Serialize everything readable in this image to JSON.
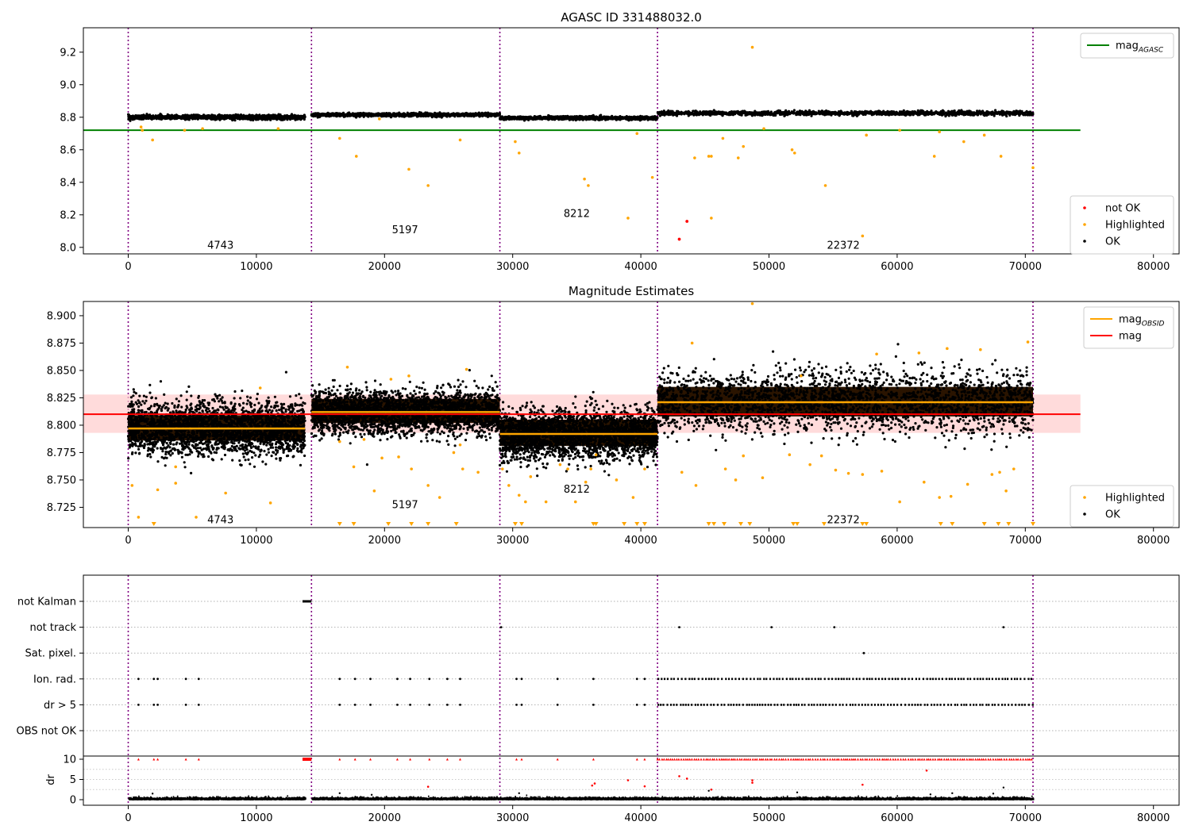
{
  "figure": {
    "x_ticks": [
      0,
      10000,
      20000,
      30000,
      40000,
      50000,
      60000,
      70000,
      80000
    ],
    "x_range": [
      -3500,
      82000
    ],
    "obsid_boundaries": [
      0,
      14300,
      29000,
      41300,
      70600
    ],
    "boundary_color": "#800080",
    "colors": {
      "ok": "#000000",
      "highlighted": "#ffa500",
      "not_ok": "#ff0000",
      "agasc_line": "#008000",
      "mag_line": "#ff0000",
      "obsid_line": "#ffa500",
      "band": "#ffcccc"
    }
  },
  "chart_data": [
    {
      "type": "scatter",
      "title": "AGASC ID 331488032.0",
      "xlabel": "",
      "ylabel": "",
      "xlim": [
        -3500,
        82000
      ],
      "ylim": [
        7.96,
        9.35
      ],
      "y_ticks": [
        "8.0",
        "8.2",
        "8.4",
        "8.6",
        "8.8",
        "9.0",
        "9.2"
      ],
      "legend_top": [
        {
          "label": "mag",
          "sub": "AGASC",
          "color": "#008000"
        }
      ],
      "legend_bottom": [
        {
          "label": "not OK",
          "color": "#ff0000"
        },
        {
          "label": "Highlighted",
          "color": "#ffa500"
        },
        {
          "label": "OK",
          "color": "#000000"
        }
      ],
      "agasc_mag": 8.72,
      "agasc_line_x": [
        -3500,
        74300
      ],
      "segments": [
        {
          "x0": 0,
          "x1": 13800,
          "center": 8.8,
          "spread": 0.02
        },
        {
          "x0": 14300,
          "x1": 29000,
          "center": 8.815,
          "spread": 0.015
        },
        {
          "x0": 29000,
          "x1": 41300,
          "center": 8.795,
          "spread": 0.015
        },
        {
          "x0": 41300,
          "x1": 70600,
          "center": 8.825,
          "spread": 0.02
        }
      ],
      "obsid_labels": [
        {
          "text": "4743",
          "x": 7200,
          "y": 8.015
        },
        {
          "text": "5197",
          "x": 21600,
          "y": 8.11
        },
        {
          "text": "8212",
          "x": 35000,
          "y": 8.21
        },
        {
          "text": "22372",
          "x": 55800,
          "y": 8.015
        }
      ],
      "highlighted_points": [
        [
          1000,
          8.74
        ],
        [
          1100,
          8.72
        ],
        [
          1900,
          8.66
        ],
        [
          4400,
          8.72
        ],
        [
          5800,
          8.73
        ],
        [
          11700,
          8.73
        ],
        [
          16500,
          8.67
        ],
        [
          17800,
          8.56
        ],
        [
          19600,
          8.79
        ],
        [
          21900,
          8.48
        ],
        [
          23400,
          8.38
        ],
        [
          25900,
          8.66
        ],
        [
          30200,
          8.65
        ],
        [
          30500,
          8.58
        ],
        [
          35600,
          8.42
        ],
        [
          35900,
          8.38
        ],
        [
          39000,
          8.18
        ],
        [
          39700,
          8.7
        ],
        [
          40900,
          8.43
        ],
        [
          44200,
          8.55
        ],
        [
          45300,
          8.56
        ],
        [
          45500,
          8.56
        ],
        [
          45500,
          8.18
        ],
        [
          47600,
          8.55
        ],
        [
          48000,
          8.62
        ],
        [
          48700,
          9.23
        ],
        [
          51800,
          8.6
        ],
        [
          52000,
          8.58
        ],
        [
          54400,
          8.38
        ],
        [
          57300,
          8.07
        ],
        [
          57600,
          8.69
        ],
        [
          62900,
          8.56
        ],
        [
          63300,
          8.71
        ],
        [
          65200,
          8.65
        ],
        [
          66800,
          8.69
        ],
        [
          68100,
          8.56
        ],
        [
          70600,
          8.49
        ],
        [
          60200,
          8.72
        ],
        [
          49600,
          8.73
        ],
        [
          46400,
          8.67
        ]
      ],
      "not_ok_points": [
        [
          43000,
          8.05
        ],
        [
          43600,
          8.16
        ]
      ]
    },
    {
      "type": "scatter",
      "title": "Magnitude Estimates",
      "xlabel": "",
      "ylabel": "",
      "xlim": [
        -3500,
        82000
      ],
      "ylim": [
        8.7065,
        8.913
      ],
      "y_ticks": [
        "8.725",
        "8.750",
        "8.775",
        "8.800",
        "8.825",
        "8.850",
        "8.875",
        "8.900"
      ],
      "legend_top": [
        {
          "label": "mag",
          "sub": "OBSID",
          "color": "#ffa500"
        },
        {
          "label": "mag",
          "sub": "",
          "color": "#ff0000"
        }
      ],
      "legend_bottom": [
        {
          "label": "Highlighted",
          "color": "#ffa500"
        },
        {
          "label": "OK",
          "color": "#000000"
        }
      ],
      "mag": 8.81,
      "mag_band": [
        8.793,
        8.828
      ],
      "mag_line_x": [
        -3500,
        74300
      ],
      "segments": [
        {
          "x0": 0,
          "x1": 13800,
          "center": 8.797,
          "spread": 0.012,
          "obsid_mag": 8.797,
          "dense": [
            8.786,
            8.809
          ]
        },
        {
          "x0": 14300,
          "x1": 29000,
          "center": 8.812,
          "spread": 0.01,
          "obsid_mag": 8.812,
          "dense": [
            8.802,
            8.824
          ]
        },
        {
          "x0": 29000,
          "x1": 41300,
          "center": 8.791,
          "spread": 0.011,
          "obsid_mag": 8.792,
          "dense": [
            8.781,
            8.805
          ]
        },
        {
          "x0": 41300,
          "x1": 70600,
          "center": 8.821,
          "spread": 0.014,
          "obsid_mag": 8.821,
          "dense": [
            8.808,
            8.835
          ]
        }
      ],
      "obsid_labels": [
        {
          "text": "4743",
          "x": 7200,
          "y": 8.714
        },
        {
          "text": "5197",
          "x": 21600,
          "y": 8.728
        },
        {
          "text": "8212",
          "x": 35000,
          "y": 8.742
        },
        {
          "text": "22372",
          "x": 55800,
          "y": 8.714
        }
      ],
      "highlighted_points": [
        [
          300,
          8.745
        ],
        [
          800,
          8.716
        ],
        [
          2300,
          8.741
        ],
        [
          3700,
          8.762
        ],
        [
          3700,
          8.747
        ],
        [
          5300,
          8.716
        ],
        [
          7600,
          8.738
        ],
        [
          11100,
          8.729
        ],
        [
          16500,
          8.785
        ],
        [
          17600,
          8.762
        ],
        [
          18400,
          8.787
        ],
        [
          19200,
          8.74
        ],
        [
          19800,
          8.77
        ],
        [
          21100,
          8.771
        ],
        [
          22100,
          8.76
        ],
        [
          23400,
          8.745
        ],
        [
          24300,
          8.734
        ],
        [
          25400,
          8.775
        ],
        [
          25900,
          8.782
        ],
        [
          26100,
          8.76
        ],
        [
          27300,
          8.757
        ],
        [
          29200,
          8.76
        ],
        [
          29700,
          8.745
        ],
        [
          30500,
          8.736
        ],
        [
          31000,
          8.73
        ],
        [
          31400,
          8.753
        ],
        [
          32600,
          8.73
        ],
        [
          33700,
          8.764
        ],
        [
          34900,
          8.73
        ],
        [
          35700,
          8.748
        ],
        [
          36100,
          8.76
        ],
        [
          38100,
          8.75
        ],
        [
          39400,
          8.734
        ],
        [
          40300,
          8.76
        ],
        [
          43200,
          8.757
        ],
        [
          44300,
          8.745
        ],
        [
          46600,
          8.76
        ],
        [
          47400,
          8.75
        ],
        [
          48000,
          8.772
        ],
        [
          49500,
          8.752
        ],
        [
          51600,
          8.773
        ],
        [
          53200,
          8.764
        ],
        [
          54100,
          8.772
        ],
        [
          55200,
          8.759
        ],
        [
          56200,
          8.756
        ],
        [
          57300,
          8.755
        ],
        [
          58800,
          8.758
        ],
        [
          60200,
          8.73
        ],
        [
          62100,
          8.748
        ],
        [
          63300,
          8.734
        ],
        [
          64200,
          8.735
        ],
        [
          65500,
          8.746
        ],
        [
          67400,
          8.755
        ],
        [
          68000,
          8.757
        ],
        [
          68500,
          8.74
        ],
        [
          69100,
          8.76
        ],
        [
          44000,
          8.875
        ],
        [
          48700,
          8.911
        ],
        [
          61700,
          8.866
        ],
        [
          63900,
          8.87
        ],
        [
          66500,
          8.869
        ],
        [
          70200,
          8.876
        ],
        [
          26400,
          8.851
        ],
        [
          17100,
          8.853
        ],
        [
          21900,
          8.845
        ],
        [
          34300,
          8.76
        ],
        [
          36500,
          8.773
        ],
        [
          10300,
          8.834
        ],
        [
          20500,
          8.842
        ],
        [
          52500,
          8.845
        ],
        [
          58400,
          8.865
        ]
      ],
      "arrow_markers": [
        2000,
        16500,
        17600,
        20300,
        22100,
        23400,
        25600,
        30200,
        30700,
        36300,
        36500,
        38700,
        39700,
        40300,
        45300,
        45700,
        46500,
        47800,
        48500,
        51900,
        52200,
        54300,
        57300,
        57600,
        63400,
        64300,
        66800,
        67900,
        68700,
        70600
      ]
    },
    {
      "type": "scatter",
      "title": "",
      "xlabel": "",
      "ylabel": "dr",
      "xlim": [
        -3500,
        82000
      ],
      "flag_labels": [
        "not Kalman",
        "not track",
        "Sat. pixel.",
        "Ion. rad.",
        "dr > 5",
        "OBS not OK"
      ],
      "flags": {
        "not Kalman": [
          [
            13600,
            14300
          ]
        ],
        "not track": [
          [
            29100,
            29100
          ],
          [
            43000,
            43000
          ],
          [
            50200,
            50200
          ],
          [
            55100,
            55100
          ],
          [
            68300,
            68300
          ]
        ],
        "Sat. pixel.": [
          [
            57400,
            57400
          ]
        ],
        "Ion. rad.": [
          [
            800,
            800
          ],
          [
            2000,
            2000
          ],
          [
            2300,
            2300
          ],
          [
            4500,
            4500
          ],
          [
            5500,
            5500
          ],
          [
            16500,
            16500
          ],
          [
            17700,
            17700
          ],
          [
            18900,
            18900
          ],
          [
            21000,
            21000
          ],
          [
            22000,
            22000
          ],
          [
            23500,
            23500
          ],
          [
            24900,
            24900
          ],
          [
            25900,
            25900
          ],
          [
            30300,
            30300
          ],
          [
            30700,
            30700
          ],
          [
            33500,
            33500
          ],
          [
            36300,
            36300
          ],
          [
            39700,
            39700
          ],
          [
            40300,
            40300
          ],
          [
            41300,
            70600
          ]
        ],
        "dr > 5": [
          [
            800,
            800
          ],
          [
            2000,
            2000
          ],
          [
            2300,
            2300
          ],
          [
            4500,
            4500
          ],
          [
            5500,
            5500
          ],
          [
            16500,
            16500
          ],
          [
            17700,
            17700
          ],
          [
            18900,
            18900
          ],
          [
            21000,
            21000
          ],
          [
            22000,
            22000
          ],
          [
            23500,
            23500
          ],
          [
            24900,
            24900
          ],
          [
            25900,
            25900
          ],
          [
            30300,
            30300
          ],
          [
            30700,
            30700
          ],
          [
            33500,
            33500
          ],
          [
            36300,
            36300
          ],
          [
            39700,
            39700
          ],
          [
            40300,
            40300
          ],
          [
            41300,
            70600
          ]
        ],
        "OBS not OK": []
      },
      "dr_ylim": [
        -0.5,
        10.5
      ],
      "dr_ticks": [
        "0",
        "5",
        "10"
      ],
      "dr_red_points": [
        [
          23400,
          3.2
        ],
        [
          36200,
          3.5
        ],
        [
          36400,
          4.0
        ],
        [
          39000,
          4.8
        ],
        [
          40300,
          3.3
        ],
        [
          43000,
          5.8
        ],
        [
          43600,
          5.2
        ],
        [
          48700,
          4.8
        ],
        [
          48700,
          4.2
        ],
        [
          57300,
          3.7
        ],
        [
          62300,
          7.2
        ],
        [
          45500,
          2.5
        ]
      ],
      "dr_black_points": [
        [
          1900,
          1.5
        ],
        [
          16500,
          1.6
        ],
        [
          19000,
          1.2
        ],
        [
          30500,
          1.6
        ],
        [
          45300,
          2.2
        ],
        [
          52200,
          1.8
        ],
        [
          62600,
          1.3
        ],
        [
          64300,
          1.6
        ],
        [
          67500,
          1.5
        ],
        [
          68300,
          3.0
        ]
      ]
    }
  ]
}
